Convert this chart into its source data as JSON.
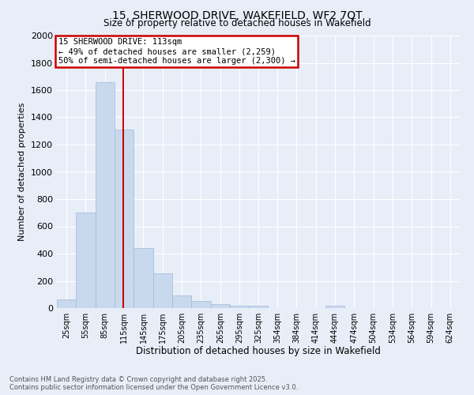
{
  "title": "15, SHERWOOD DRIVE, WAKEFIELD, WF2 7QT",
  "subtitle": "Size of property relative to detached houses in Wakefield",
  "xlabel": "Distribution of detached houses by size in Wakefield",
  "ylabel": "Number of detached properties",
  "categories": [
    "25sqm",
    "55sqm",
    "85sqm",
    "115sqm",
    "145sqm",
    "175sqm",
    "205sqm",
    "235sqm",
    "265sqm",
    "295sqm",
    "325sqm",
    "354sqm",
    "384sqm",
    "414sqm",
    "444sqm",
    "474sqm",
    "504sqm",
    "534sqm",
    "564sqm",
    "594sqm",
    "624sqm"
  ],
  "bin_edges": [
    10,
    40,
    70,
    100,
    130,
    160,
    190,
    220,
    250,
    280,
    310,
    339,
    369,
    399,
    429,
    459,
    489,
    519,
    549,
    579,
    609,
    639
  ],
  "values": [
    65,
    700,
    1660,
    1310,
    440,
    255,
    90,
    55,
    30,
    20,
    20,
    0,
    0,
    0,
    15,
    0,
    0,
    0,
    0,
    0,
    0
  ],
  "bar_color": "#c9d9ed",
  "bar_edge_color": "#a0b8d8",
  "red_line_x": 113,
  "annotation_line1": "15 SHERWOOD DRIVE: 113sqm",
  "annotation_line2": "← 49% of detached houses are smaller (2,259)",
  "annotation_line3": "50% of semi-detached houses are larger (2,300) →",
  "annotation_box_color": "#ffffff",
  "annotation_box_edge_color": "#cc0000",
  "red_line_color": "#cc0000",
  "ylim": [
    0,
    2000
  ],
  "yticks": [
    0,
    200,
    400,
    600,
    800,
    1000,
    1200,
    1400,
    1600,
    1800,
    2000
  ],
  "background_color": "#e8eef8",
  "grid_color": "#ffffff",
  "footer_line1": "Contains HM Land Registry data © Crown copyright and database right 2025.",
  "footer_line2": "Contains public sector information licensed under the Open Government Licence v3.0."
}
